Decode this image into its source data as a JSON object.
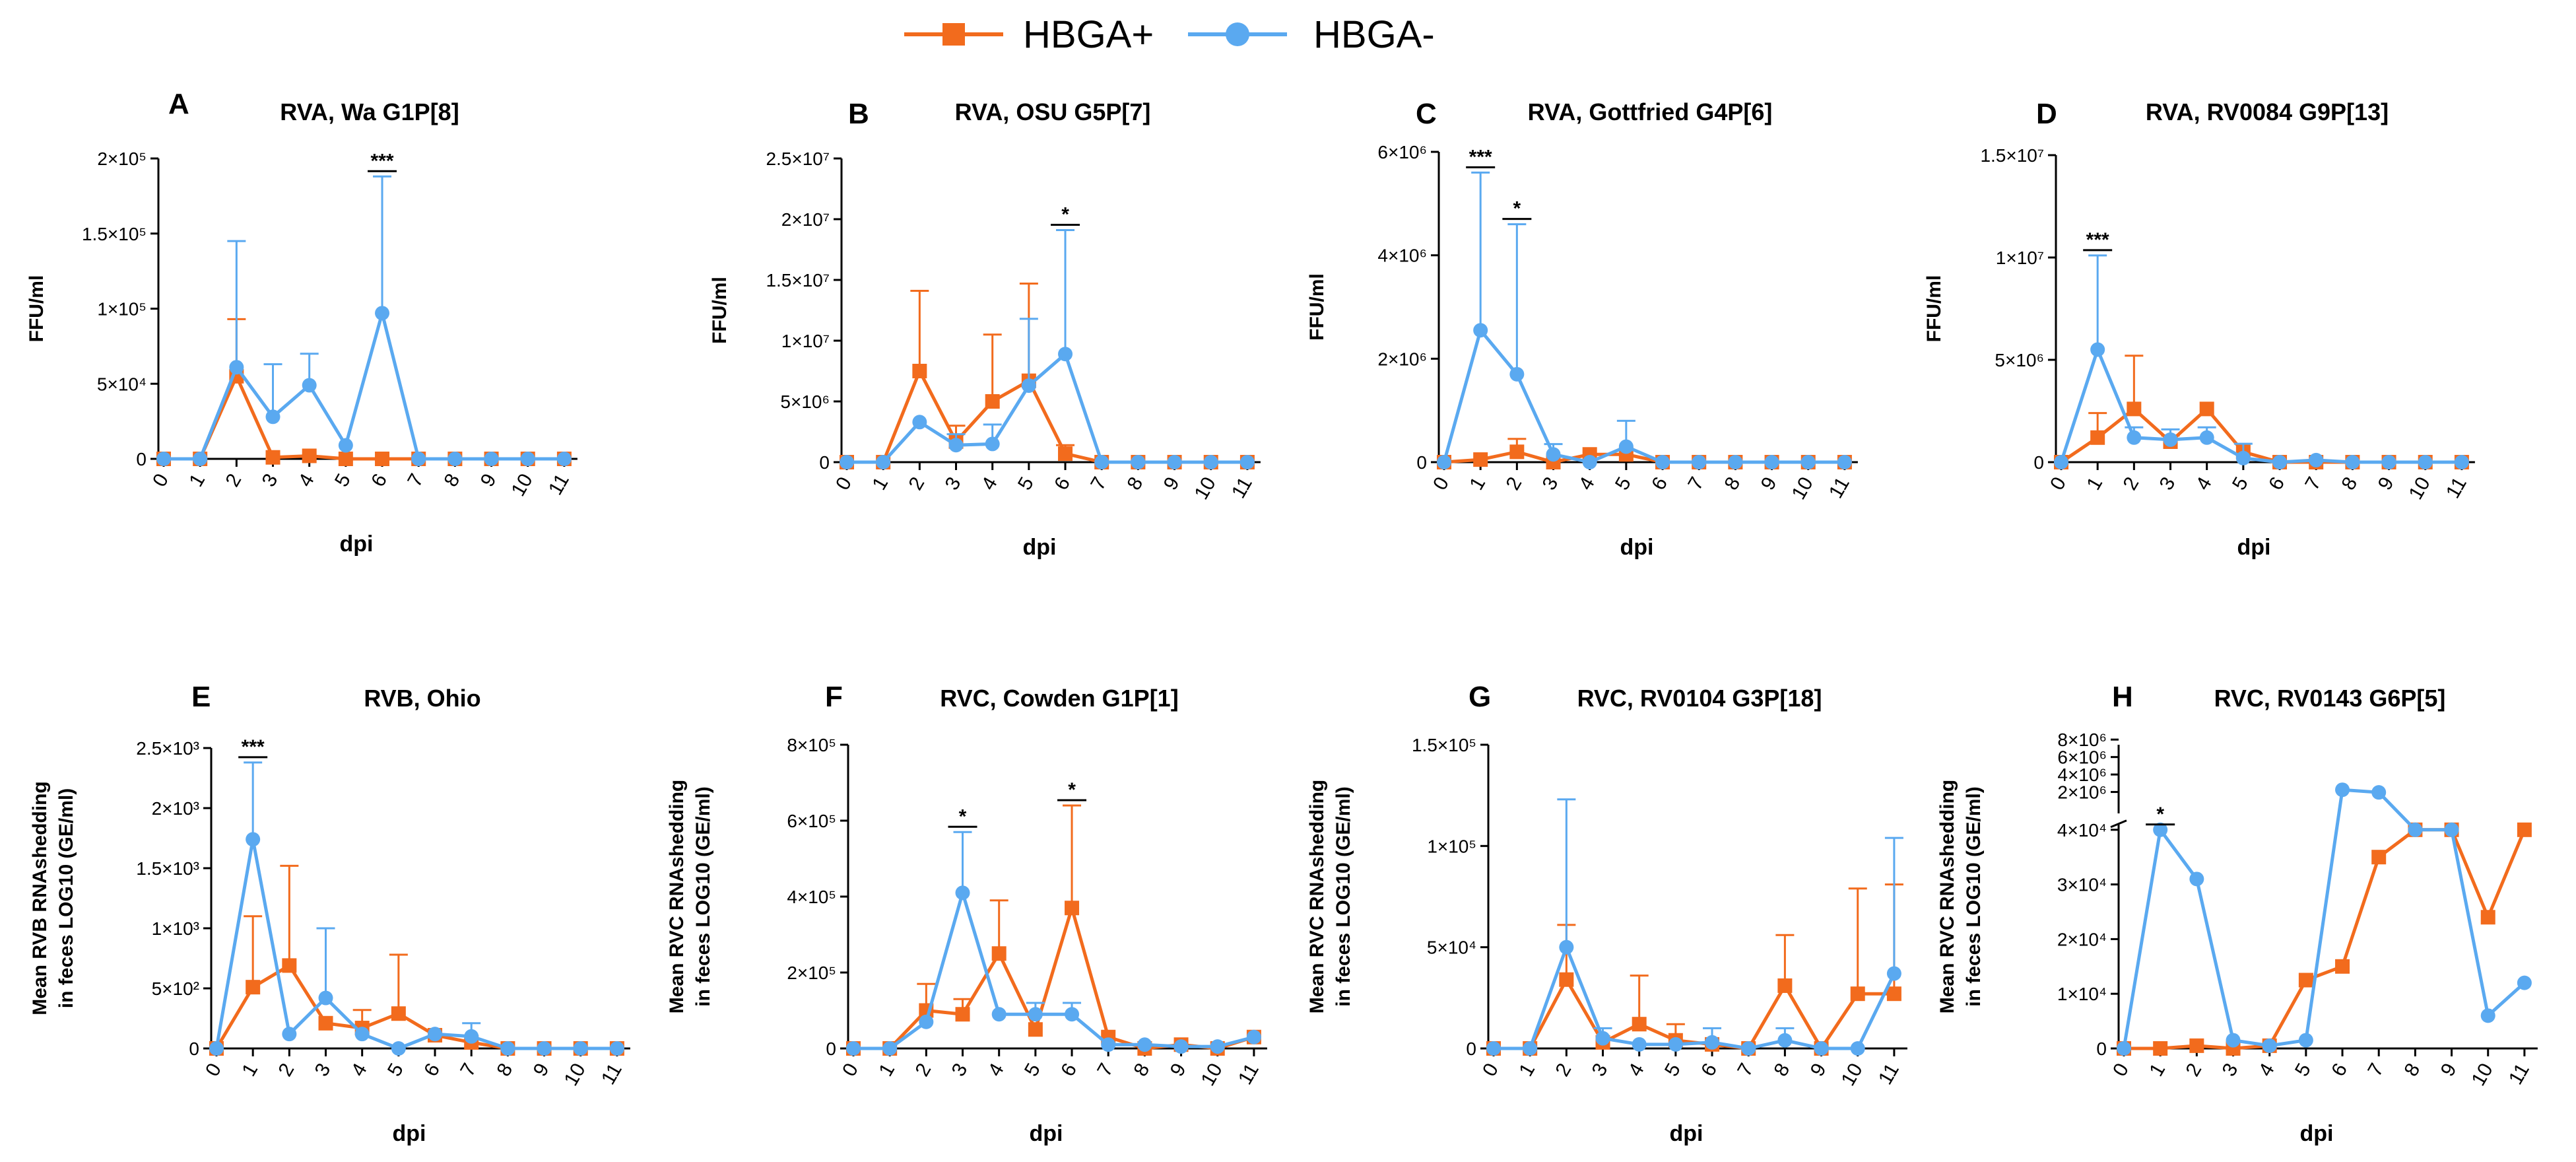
{
  "legend": {
    "entries": [
      {
        "label": "HBGA+",
        "color": "#F26B1D",
        "marker": "square"
      },
      {
        "label": "HBGA-",
        "color": "#5AA9F0",
        "marker": "circle"
      }
    ]
  },
  "colors": {
    "hbga_pos": "#F26B1D",
    "hbga_neg": "#5AA9F0"
  },
  "chart_data": [
    {
      "id": "A",
      "type": "line",
      "title": "RVA, Wa G1P[8]",
      "ylabel": [
        "FFU/ml"
      ],
      "xlabel": "dpi",
      "x": [
        0,
        1,
        2,
        3,
        4,
        5,
        6,
        7,
        8,
        9,
        10,
        11
      ],
      "ylim": [
        0,
        200000
      ],
      "yticks": [
        0,
        50000,
        100000,
        150000,
        200000
      ],
      "ytick_labels": [
        "0",
        "5×10⁴",
        "1×10⁵",
        "1.5×10⁵",
        "2×10⁵"
      ],
      "series": [
        {
          "name": "HBGA+",
          "values": [
            0,
            0,
            55000,
            1000,
            2000,
            0,
            0,
            0,
            0,
            0,
            0,
            0
          ],
          "err": [
            0,
            0,
            38000,
            0,
            0,
            0,
            0,
            0,
            0,
            0,
            0,
            0
          ]
        },
        {
          "name": "HBGA-",
          "values": [
            0,
            0,
            61000,
            28000,
            49000,
            9000,
            97000,
            0,
            0,
            0,
            0,
            0
          ],
          "err": [
            0,
            0,
            84000,
            35000,
            21000,
            0,
            91000,
            0,
            0,
            0,
            0,
            0
          ]
        }
      ],
      "significance": [
        {
          "x": 6,
          "label": "***"
        }
      ]
    },
    {
      "id": "B",
      "type": "line",
      "title": "RVA, OSU G5P[7]",
      "ylabel": [
        "FFU/ml"
      ],
      "xlabel": "dpi",
      "x": [
        0,
        1,
        2,
        3,
        4,
        5,
        6,
        7,
        8,
        9,
        10,
        11
      ],
      "ylim": [
        0,
        25000000
      ],
      "yticks": [
        0,
        5000000,
        10000000,
        15000000,
        20000000,
        25000000
      ],
      "ytick_labels": [
        "0",
        "5×10⁶",
        "1×10⁷",
        "1.5×10⁷",
        "2×10⁷",
        "2.5×10⁷"
      ],
      "series": [
        {
          "name": "HBGA+",
          "values": [
            0,
            0,
            7500000,
            1700000,
            5000000,
            6700000,
            700000,
            0,
            0,
            0,
            0,
            0
          ],
          "err": [
            0,
            0,
            6600000,
            1300000,
            5500000,
            8000000,
            700000,
            0,
            0,
            0,
            0,
            0
          ]
        },
        {
          "name": "HBGA-",
          "values": [
            0,
            0,
            3300000,
            1400000,
            1500000,
            6300000,
            8900000,
            0,
            0,
            0,
            0,
            0
          ],
          "err": [
            0,
            0,
            0,
            900000,
            1600000,
            5500000,
            10200000,
            0,
            0,
            0,
            0,
            0
          ]
        }
      ],
      "significance": [
        {
          "x": 6,
          "label": "*"
        }
      ]
    },
    {
      "id": "C",
      "type": "line",
      "title": "RVA, Gottfried G4P[6]",
      "ylabel": [
        "FFU/ml"
      ],
      "xlabel": "dpi",
      "x": [
        0,
        1,
        2,
        3,
        4,
        5,
        6,
        7,
        8,
        9,
        10,
        11
      ],
      "ylim": [
        0,
        6000000
      ],
      "yticks": [
        0,
        2000000,
        4000000,
        6000000
      ],
      "ytick_labels": [
        "0",
        "2×10⁶",
        "4×10⁶",
        "6×10⁶"
      ],
      "series": [
        {
          "name": "HBGA+",
          "values": [
            0,
            50000,
            200000,
            0,
            150000,
            150000,
            0,
            0,
            0,
            0,
            0,
            0
          ],
          "err": [
            0,
            0,
            250000,
            0,
            0,
            0,
            0,
            0,
            0,
            0,
            0,
            0
          ]
        },
        {
          "name": "HBGA-",
          "values": [
            0,
            2550000,
            1700000,
            150000,
            0,
            300000,
            0,
            0,
            0,
            0,
            0,
            0
          ],
          "err": [
            0,
            3050000,
            2900000,
            200000,
            0,
            500000,
            0,
            0,
            0,
            0,
            0,
            0
          ]
        }
      ],
      "significance": [
        {
          "x": 1,
          "label": "***"
        },
        {
          "x": 2,
          "label": "*"
        }
      ]
    },
    {
      "id": "D",
      "type": "line",
      "title": "RVA, RV0084 G9P[13]",
      "ylabel": [
        "FFU/ml"
      ],
      "xlabel": "dpi",
      "x": [
        0,
        1,
        2,
        3,
        4,
        5,
        6,
        7,
        8,
        9,
        10,
        11
      ],
      "ylim": [
        0,
        15000000
      ],
      "yticks": [
        0,
        5000000,
        10000000,
        15000000
      ],
      "ytick_labels": [
        "0",
        "5×10⁶",
        "1×10⁷",
        "1.5×10⁷"
      ],
      "series": [
        {
          "name": "HBGA+",
          "values": [
            0,
            1200000,
            2600000,
            1000000,
            2600000,
            500000,
            0,
            0,
            0,
            0,
            0,
            0
          ],
          "err": [
            0,
            1200000,
            2600000,
            300000,
            0,
            0,
            0,
            0,
            0,
            0,
            0,
            0
          ]
        },
        {
          "name": "HBGA-",
          "values": [
            0,
            5500000,
            1200000,
            1100000,
            1200000,
            200000,
            0,
            100000,
            0,
            0,
            0,
            0
          ],
          "err": [
            0,
            4600000,
            500000,
            500000,
            500000,
            700000,
            0,
            0,
            0,
            0,
            0,
            0
          ]
        }
      ],
      "significance": [
        {
          "x": 1,
          "label": "***"
        }
      ]
    },
    {
      "id": "E",
      "type": "line",
      "title": "RVB, Ohio",
      "ylabel": [
        "Mean RVB RNAshedding",
        "in feces LOG10 (GE/ml)"
      ],
      "xlabel": "dpi",
      "x": [
        0,
        1,
        2,
        3,
        4,
        5,
        6,
        7,
        8,
        9,
        10,
        11
      ],
      "ylim": [
        0,
        2500
      ],
      "yticks": [
        0,
        500,
        1000,
        1500,
        2000,
        2500
      ],
      "ytick_labels": [
        "0",
        "5×10²",
        "1×10³",
        "1.5×10³",
        "2×10³",
        "2.5×10³"
      ],
      "series": [
        {
          "name": "HBGA+",
          "values": [
            0,
            510,
            690,
            210,
            170,
            290,
            110,
            50,
            0,
            0,
            0,
            0
          ],
          "err": [
            0,
            590,
            830,
            0,
            150,
            490,
            0,
            0,
            0,
            0,
            0,
            0
          ]
        },
        {
          "name": "HBGA-",
          "values": [
            0,
            1740,
            120,
            420,
            120,
            0,
            120,
            100,
            0,
            0,
            0,
            0
          ],
          "err": [
            0,
            640,
            0,
            580,
            0,
            0,
            0,
            110,
            0,
            0,
            0,
            0
          ]
        }
      ],
      "significance": [
        {
          "x": 1,
          "label": "***"
        }
      ]
    },
    {
      "id": "F",
      "type": "line",
      "title": "RVC, Cowden G1P[1]",
      "ylabel": [
        "Mean RVC RNAshedding",
        "in feces LOG10 (GE/ml)"
      ],
      "xlabel": "dpi",
      "x": [
        0,
        1,
        2,
        3,
        4,
        5,
        6,
        7,
        8,
        9,
        10,
        11
      ],
      "ylim": [
        0,
        800000
      ],
      "yticks": [
        0,
        200000,
        400000,
        600000,
        800000
      ],
      "ytick_labels": [
        "0",
        "2×10⁵",
        "4×10⁵",
        "6×10⁵",
        "8×10⁵"
      ],
      "series": [
        {
          "name": "HBGA+",
          "values": [
            0,
            0,
            100000,
            90000,
            250000,
            50000,
            370000,
            30000,
            0,
            10000,
            0,
            30000
          ],
          "err": [
            0,
            0,
            70000,
            40000,
            140000,
            0,
            270000,
            0,
            0,
            0,
            0,
            0
          ]
        },
        {
          "name": "HBGA-",
          "values": [
            0,
            0,
            70000,
            410000,
            90000,
            90000,
            90000,
            10000,
            10000,
            5000,
            5000,
            30000
          ],
          "err": [
            0,
            0,
            0,
            160000,
            0,
            30000,
            30000,
            0,
            0,
            0,
            0,
            0
          ]
        }
      ],
      "significance": [
        {
          "x": 3,
          "label": "*"
        },
        {
          "x": 6,
          "label": "*"
        }
      ]
    },
    {
      "id": "G",
      "type": "line",
      "title": "RVC, RV0104 G3P[18]",
      "ylabel": [
        "Mean RVC RNAshedding",
        "in feces LOG10 (GE/ml)"
      ],
      "xlabel": "dpi",
      "x": [
        0,
        1,
        2,
        3,
        4,
        5,
        6,
        7,
        8,
        9,
        10,
        11
      ],
      "ylim": [
        0,
        150000
      ],
      "yticks": [
        0,
        50000,
        100000,
        150000
      ],
      "ytick_labels": [
        "0",
        "5×10⁴",
        "1×10⁵",
        "1.5×10⁵"
      ],
      "series": [
        {
          "name": "HBGA+",
          "values": [
            0,
            0,
            34000,
            3000,
            12000,
            4000,
            2000,
            0,
            31000,
            0,
            27000,
            27000
          ],
          "err": [
            0,
            0,
            27000,
            0,
            24000,
            8000,
            0,
            0,
            25000,
            0,
            52000,
            54000
          ]
        },
        {
          "name": "HBGA-",
          "values": [
            0,
            0,
            50000,
            5000,
            2000,
            2000,
            3000,
            0,
            4000,
            0,
            0,
            37000
          ],
          "err": [
            0,
            0,
            73000,
            5000,
            0,
            0,
            7000,
            0,
            6000,
            0,
            0,
            67000
          ]
        }
      ],
      "significance": []
    },
    {
      "id": "H",
      "type": "line",
      "title": "RVC, RV0143 G6P[5]",
      "ylabel": [
        "Mean RVC RNAshedding",
        "in feces LOG10 (GE/ml)"
      ],
      "xlabel": "dpi",
      "x": [
        0,
        1,
        2,
        3,
        4,
        5,
        6,
        7,
        8,
        9,
        10,
        11
      ],
      "axis_break": {
        "lower_range": [
          0,
          40000
        ],
        "upper_range": [
          0,
          8000000
        ]
      },
      "yticks_lower": [
        0,
        10000,
        20000,
        30000,
        40000
      ],
      "ytick_labels_lower": [
        "0",
        "1×10⁴",
        "2×10⁴",
        "3×10⁴",
        "4×10⁴"
      ],
      "yticks_upper": [
        2000000,
        4000000,
        6000000,
        8000000
      ],
      "ytick_labels_upper": [
        "2×10⁶",
        "4×10⁶",
        "6×10⁶",
        "8×10⁶"
      ],
      "series": [
        {
          "name": "HBGA+",
          "values": [
            0,
            0,
            500,
            0,
            500,
            12500,
            15000,
            35000,
            40000,
            40000,
            24000,
            40000
          ]
        },
        {
          "name": "HBGA-",
          "values": [
            0,
            40000,
            31000,
            1500,
            500,
            1500,
            1800000,
            1500000,
            40000,
            40000,
            6000,
            12000
          ]
        }
      ],
      "significance": [
        {
          "x": 1,
          "label": "*"
        }
      ]
    }
  ]
}
